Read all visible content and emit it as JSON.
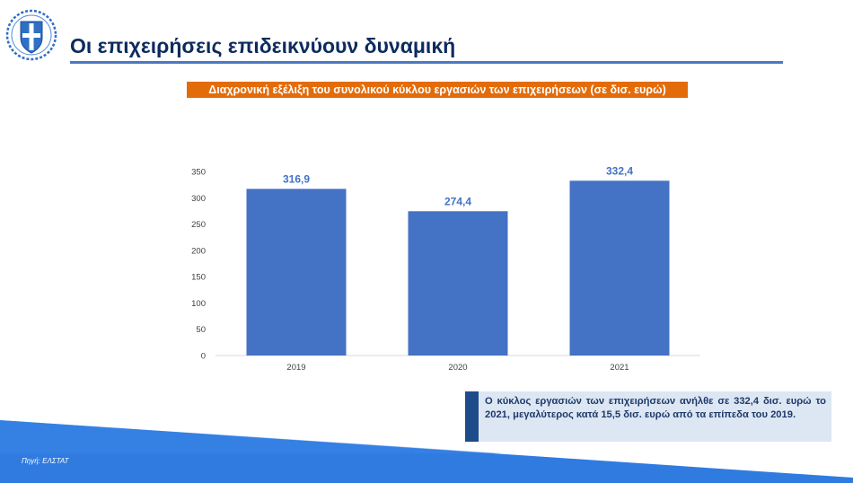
{
  "header": {
    "title": "Οι επιχειρήσεις επιδεικνύουν δυναμική",
    "logo_icon": "greek-coat-of-arms-icon"
  },
  "chart_caption": "Διαχρονική εξέλιξη του συνολικού κύκλου εργασιών των επιχειρήσεων (σε δισ. ευρώ)",
  "chart_data": {
    "type": "bar",
    "categories": [
      "2019",
      "2020",
      "2021"
    ],
    "values": [
      316.9,
      274.4,
      332.4
    ],
    "value_labels": [
      "316,9",
      "274,4",
      "332,4"
    ],
    "yticks": [
      "0",
      "50",
      "100",
      "150",
      "200",
      "250",
      "300",
      "350"
    ],
    "ylim": [
      0,
      350
    ],
    "title": "",
    "xlabel": "",
    "ylabel": "",
    "grid": false,
    "bar_color": "#4472c4",
    "label_color": "#4472c4"
  },
  "note": {
    "text": "Ο κύκλος εργασιών των επιχειρήσεων ανήλθε σε 332,4 δισ. ευρώ το 2021, μεγαλύτερος κατά 15,5 δισ. ευρώ από τα επίπεδα του 2019."
  },
  "footer": {
    "source": "Πηγή: ΕΛΣΤΑΤ"
  },
  "colors": {
    "title": "#0d2b5e",
    "caption_bg": "#e36c0a",
    "band": "#2f7be0",
    "note_bg": "#dde6f3",
    "note_accent": "#1e4c8a"
  }
}
